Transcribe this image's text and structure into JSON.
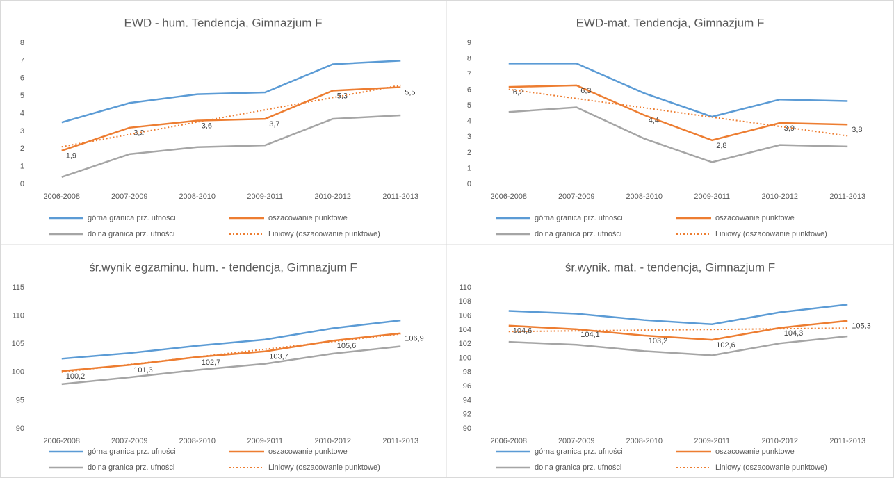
{
  "chart_data": [
    {
      "type": "line",
      "title": "EWD - hum. Tendencja, Gimnazjum F",
      "categories": [
        "2006-2008",
        "2007-2009",
        "2008-2010",
        "2009-2011",
        "2010-2012",
        "2011-2013"
      ],
      "ylim": [
        0,
        8
      ],
      "yticks": [
        0,
        1,
        2,
        3,
        4,
        5,
        6,
        7,
        8
      ],
      "grid": false,
      "series": [
        {
          "name": "górna granica prz. ufności",
          "color": "#5b9bd5",
          "values": [
            3.5,
            4.6,
            5.1,
            5.2,
            6.8,
            7.0
          ]
        },
        {
          "name": "oszacowanie punktowe",
          "color": "#ed7d31",
          "values": [
            1.9,
            3.2,
            3.6,
            3.7,
            5.3,
            5.5
          ],
          "value_labels": [
            "1,9",
            "3,2",
            "3,6",
            "3,7",
            "5,3",
            "5,5"
          ]
        },
        {
          "name": "dolna granica prz. ufności",
          "color": "#a5a5a5",
          "values": [
            0.4,
            1.7,
            2.1,
            2.2,
            3.7,
            3.9
          ]
        },
        {
          "name": "Liniowy (oszacowanie punktowe)",
          "color": "#ed7d31",
          "dash": "dotted",
          "values": [
            2.12,
            2.82,
            3.52,
            4.21,
            4.91,
            5.61
          ]
        }
      ]
    },
    {
      "type": "line",
      "title": "EWD-mat. Tendencja, Gimnazjum F",
      "categories": [
        "2006-2008",
        "2007-2009",
        "2008-2010",
        "2009-2011",
        "2010-2012",
        "2011-2013"
      ],
      "ylim": [
        0,
        9
      ],
      "yticks": [
        0,
        1,
        2,
        3,
        4,
        5,
        6,
        7,
        8,
        9
      ],
      "grid": false,
      "series": [
        {
          "name": "górna granica prz. ufności",
          "color": "#5b9bd5",
          "values": [
            7.7,
            7.7,
            5.8,
            4.3,
            5.4,
            5.3
          ]
        },
        {
          "name": "oszacowanie punktowe",
          "color": "#ed7d31",
          "values": [
            6.2,
            6.3,
            4.4,
            2.8,
            3.9,
            3.8
          ],
          "value_labels": [
            "6,2",
            "6,3",
            "4,4",
            "2,8",
            "3,9",
            "3,8"
          ]
        },
        {
          "name": "dolna granica prz. ufności",
          "color": "#a5a5a5",
          "values": [
            4.6,
            4.9,
            2.9,
            1.4,
            2.5,
            2.4
          ]
        },
        {
          "name": "Liniowy (oszacowanie punktowe)",
          "color": "#ed7d31",
          "dash": "dotted",
          "values": [
            6.05,
            5.46,
            4.87,
            4.27,
            3.68,
            3.08
          ]
        }
      ]
    },
    {
      "type": "line",
      "title": "śr.wynik egzaminu. hum. - tendencja, Gimnazjum F",
      "categories": [
        "2006-2008",
        "2007-2009",
        "2008-2010",
        "2009-2011",
        "2010-2012",
        "2011-2013"
      ],
      "ylim": [
        90,
        115
      ],
      "yticks": [
        90,
        95,
        100,
        105,
        110,
        115
      ],
      "grid": false,
      "series": [
        {
          "name": "górna granica prz. ufności",
          "color": "#5b9bd5",
          "values": [
            102.4,
            103.4,
            104.7,
            105.8,
            107.8,
            109.2
          ]
        },
        {
          "name": "oszacowanie punktowe",
          "color": "#ed7d31",
          "values": [
            100.2,
            101.3,
            102.7,
            103.7,
            105.6,
            106.9
          ],
          "value_labels": [
            "100,2",
            "101,3",
            "102,7",
            "103,7",
            "105,6",
            "106,9"
          ]
        },
        {
          "name": "dolna granica prz. ufności",
          "color": "#a5a5a5",
          "values": [
            97.9,
            99.1,
            100.4,
            101.5,
            103.3,
            104.6
          ]
        },
        {
          "name": "Liniowy (oszacowanie punktowe)",
          "color": "#ed7d31",
          "dash": "dotted",
          "values": [
            100.01,
            101.37,
            102.72,
            104.08,
            105.43,
            106.79
          ]
        }
      ]
    },
    {
      "type": "line",
      "title": "śr.wynik. mat. - tendencja, Gimnazjum F",
      "categories": [
        "2006-2008",
        "2007-2009",
        "2008-2010",
        "2009-2011",
        "2010-2012",
        "2011-2013"
      ],
      "ylim": [
        90,
        110
      ],
      "yticks": [
        90,
        92,
        94,
        96,
        98,
        100,
        102,
        104,
        106,
        108,
        110
      ],
      "grid": false,
      "series": [
        {
          "name": "górna granica prz. ufności",
          "color": "#5b9bd5",
          "values": [
            106.7,
            106.3,
            105.4,
            104.8,
            106.5,
            107.6
          ]
        },
        {
          "name": "oszacowanie punktowe",
          "color": "#ed7d31",
          "values": [
            104.6,
            104.1,
            103.2,
            102.6,
            104.3,
            105.3
          ],
          "value_labels": [
            "104,6",
            "104,1",
            "103,2",
            "102,6",
            "104,3",
            "105,3"
          ]
        },
        {
          "name": "dolna granica prz. ufności",
          "color": "#a5a5a5",
          "values": [
            102.3,
            101.9,
            101.0,
            100.4,
            102.1,
            103.1
          ]
        },
        {
          "name": "Liniowy (oszacowanie punktowe)",
          "color": "#ed7d31",
          "dash": "dotted",
          "values": [
            103.77,
            103.87,
            103.97,
            104.07,
            104.17,
            104.27
          ]
        }
      ]
    }
  ]
}
